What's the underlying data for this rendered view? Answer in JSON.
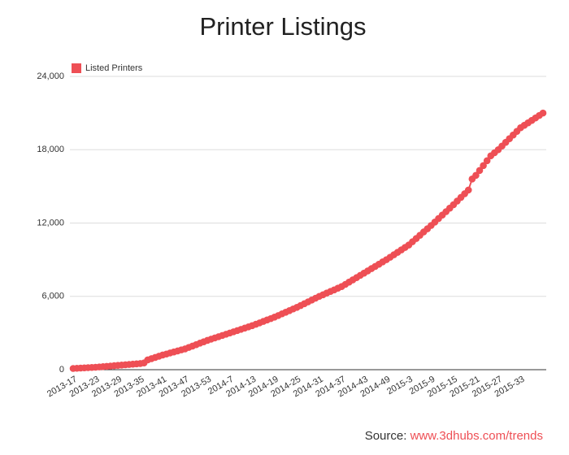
{
  "chart_data": {
    "type": "line",
    "title": "Printer Listings",
    "source_label": "Source:",
    "source_url": "www.3dhubs.com/trends",
    "categories": [
      "2013-17",
      null,
      null,
      null,
      null,
      null,
      "2013-23",
      null,
      null,
      null,
      null,
      null,
      "2013-29",
      null,
      null,
      null,
      null,
      null,
      "2013-35",
      null,
      null,
      null,
      null,
      null,
      "2013-41",
      null,
      null,
      null,
      null,
      null,
      "2013-47",
      null,
      null,
      null,
      null,
      null,
      "2013-53",
      null,
      null,
      null,
      null,
      null,
      "2014-7",
      null,
      null,
      null,
      null,
      null,
      "2014-13",
      null,
      null,
      null,
      null,
      null,
      "2014-19",
      null,
      null,
      null,
      null,
      null,
      "2014-25",
      null,
      null,
      null,
      null,
      null,
      "2014-31",
      null,
      null,
      null,
      null,
      null,
      "2014-37",
      null,
      null,
      null,
      null,
      null,
      "2014-43",
      null,
      null,
      null,
      null,
      null,
      "2014-49",
      null,
      null,
      null,
      null,
      null,
      "2015-3",
      null,
      null,
      null,
      null,
      null,
      "2015-9",
      null,
      null,
      null,
      null,
      null,
      "2015-15",
      null,
      null,
      null,
      null,
      null,
      "2015-21",
      null,
      null,
      null,
      null,
      null,
      "2015-27",
      null,
      null,
      null,
      null,
      null,
      "2015-33",
      null,
      null,
      null,
      null,
      null,
      null
    ],
    "series": [
      {
        "name": "Listed Printers",
        "color": "#ee4f55",
        "values": [
          100,
          117,
          133,
          150,
          167,
          183,
          200,
          225,
          250,
          275,
          300,
          325,
          350,
          375,
          400,
          425,
          450,
          475,
          500,
          550,
          800,
          900,
          1000,
          1100,
          1200,
          1280,
          1370,
          1450,
          1530,
          1620,
          1700,
          1820,
          1930,
          2050,
          2170,
          2280,
          2400,
          2500,
          2600,
          2700,
          2800,
          2900,
          3000,
          3100,
          3200,
          3300,
          3400,
          3500,
          3600,
          3720,
          3830,
          3950,
          4070,
          4180,
          4300,
          4430,
          4570,
          4700,
          4830,
          4970,
          5100,
          5250,
          5400,
          5550,
          5700,
          5850,
          6000,
          6130,
          6270,
          6400,
          6530,
          6670,
          6800,
          6980,
          7170,
          7350,
          7530,
          7720,
          7900,
          8080,
          8270,
          8450,
          8630,
          8820,
          9000,
          9200,
          9400,
          9600,
          9800,
          10000,
          10200,
          10470,
          10730,
          11000,
          11270,
          11530,
          11800,
          12080,
          12370,
          12650,
          12930,
          13220,
          13500,
          13800,
          14100,
          14400,
          14700,
          15600,
          15900,
          16300,
          16700,
          17100,
          17500,
          17750,
          18000,
          18300,
          18600,
          18900,
          19200,
          19500,
          19800,
          20000,
          20200,
          20400,
          20600,
          20800,
          21000
        ]
      }
    ],
    "ylim": [
      0,
      24000
    ],
    "yticks": [
      0,
      {
        "value": 6000,
        "label": "6,000"
      },
      {
        "value": 12000,
        "label": "12,000"
      },
      {
        "value": 18000,
        "label": "18,000"
      },
      {
        "value": 24000,
        "label": "24,000"
      }
    ],
    "grid": true,
    "legend": "top-left"
  }
}
